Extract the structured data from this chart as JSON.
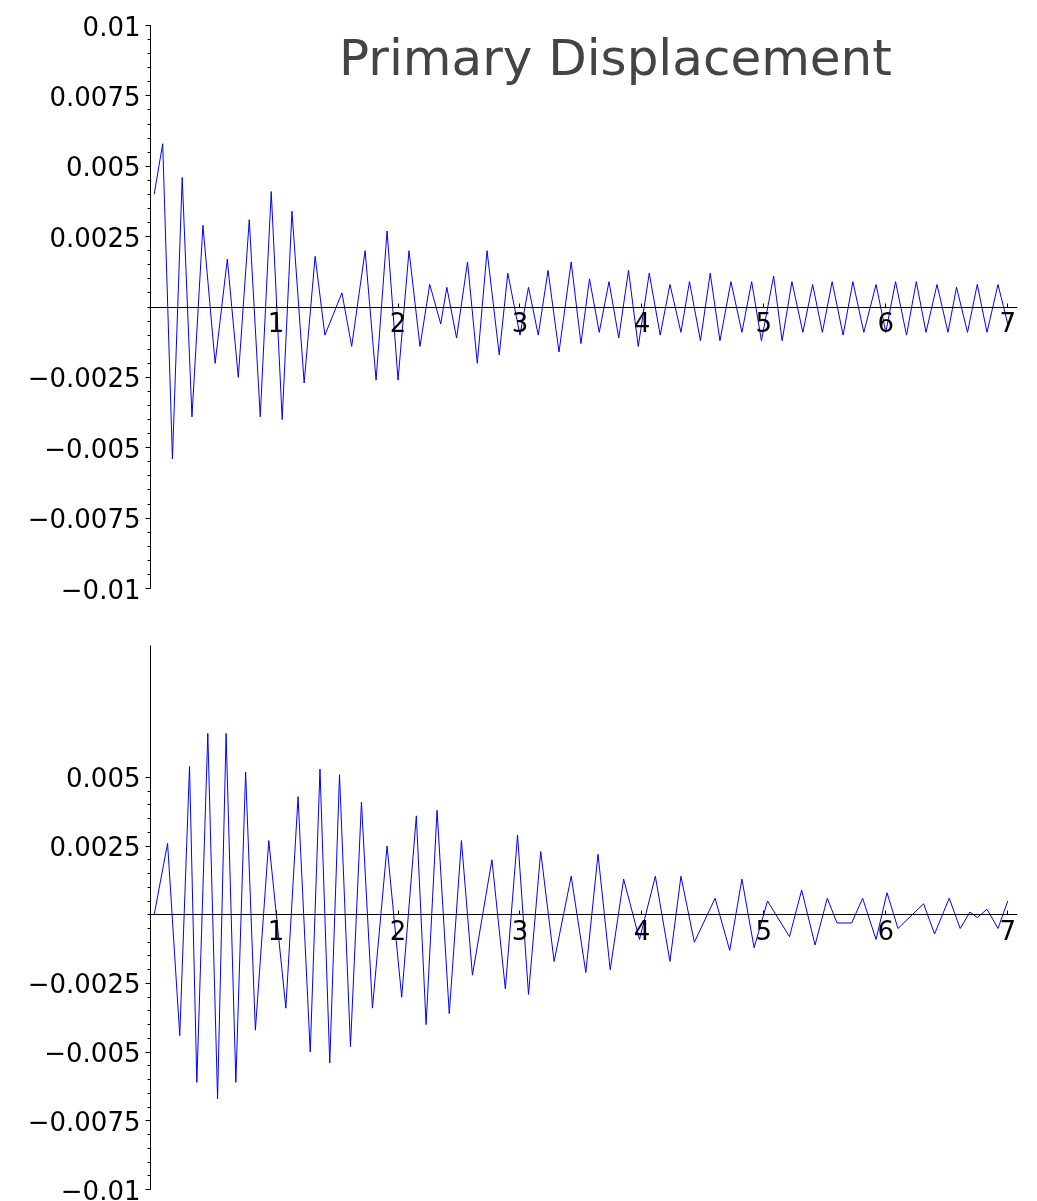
{
  "chart_data": [
    {
      "type": "line",
      "title": "Primary Displacement",
      "xlim": [
        -0.03,
        7.08
      ],
      "ylim": [
        -0.01,
        0.01
      ],
      "xticks": [
        1,
        2,
        3,
        4,
        5,
        6,
        7
      ],
      "yticks": [
        -0.01,
        -0.0075,
        -0.005,
        -0.0025,
        0.0025,
        0.005,
        0.0075,
        0.01
      ],
      "grid": false,
      "marker": "none",
      "line_style": "solid",
      "series": [
        {
          "color": "#0000ff",
          "x": [
            0,
            0.07,
            0.15,
            0.23,
            0.31,
            0.4,
            0.5,
            0.6,
            0.69,
            0.78,
            0.87,
            0.96,
            1.05,
            1.13,
            1.23,
            1.32,
            1.4,
            1.54,
            1.62,
            1.73,
            1.82,
            1.91,
            2.0,
            2.09,
            2.18,
            2.26,
            2.35,
            2.4,
            2.48,
            2.57,
            2.65,
            2.73,
            2.83,
            2.9,
            3.0,
            3.07,
            3.15,
            3.23,
            3.32,
            3.42,
            3.5,
            3.57,
            3.65,
            3.73,
            3.81,
            3.89,
            3.97,
            4.06,
            4.15,
            4.23,
            4.32,
            4.39,
            4.48,
            4.56,
            4.64,
            4.73,
            4.82,
            4.9,
            4.98,
            5.08,
            5.15,
            5.23,
            5.32,
            5.4,
            5.48,
            5.56,
            5.65,
            5.73,
            5.82,
            5.92,
            6.0,
            6.08,
            6.17,
            6.25,
            6.33,
            6.42,
            6.51,
            6.58,
            6.67,
            6.75,
            6.83,
            6.92,
            7.0
          ],
          "values": [
            0.004,
            0.0058,
            -0.0054,
            0.0046,
            -0.0039,
            0.0029,
            -0.002,
            0.0017,
            -0.0025,
            0.0031,
            -0.0039,
            0.0041,
            -0.004,
            0.0034,
            -0.0027,
            0.0018,
            -0.001,
            0.0005,
            -0.0014,
            0.002,
            -0.0026,
            0.0027,
            -0.0026,
            0.002,
            -0.0014,
            0.0008,
            -0.0006,
            0.0007,
            -0.0011,
            0.0016,
            -0.002,
            0.002,
            -0.0017,
            0.0012,
            -0.001,
            0.0007,
            -0.001,
            0.0013,
            -0.0016,
            0.0016,
            -0.0013,
            0.001,
            -0.0009,
            0.0009,
            -0.0011,
            0.0013,
            -0.0014,
            0.0012,
            -0.001,
            0.0008,
            -0.0009,
            0.0009,
            -0.0012,
            0.0012,
            -0.0012,
            0.0009,
            -0.0009,
            0.0009,
            -0.0012,
            0.0011,
            -0.0012,
            0.0009,
            -0.0009,
            0.0008,
            -0.0009,
            0.0009,
            -0.001,
            0.0009,
            -0.0009,
            0.0008,
            -0.0009,
            0.0009,
            -0.001,
            0.0009,
            -0.0009,
            0.0008,
            -0.0009,
            0.0007,
            -0.0009,
            0.0008,
            -0.0009,
            0.0008,
            -0.0006
          ]
        }
      ]
    },
    {
      "type": "line",
      "xlim": [
        -0.03,
        7.08
      ],
      "ylim": [
        -0.01,
        0.0098
      ],
      "xticks": [
        1,
        2,
        3,
        4,
        5,
        6,
        7
      ],
      "yticks": [
        -0.01,
        -0.0075,
        -0.005,
        -0.0025,
        0.0025,
        0.005
      ],
      "grid": false,
      "marker": "none",
      "line_style": "solid",
      "series": [
        {
          "color": "#0000ff",
          "x": [
            0,
            0.11,
            0.21,
            0.29,
            0.35,
            0.44,
            0.52,
            0.59,
            0.67,
            0.75,
            0.83,
            0.94,
            1.08,
            1.18,
            1.28,
            1.36,
            1.44,
            1.52,
            1.61,
            1.7,
            1.79,
            1.91,
            2.03,
            2.15,
            2.23,
            2.32,
            2.42,
            2.52,
            2.61,
            2.77,
            2.88,
            2.98,
            3.07,
            3.17,
            3.28,
            3.42,
            3.54,
            3.64,
            3.74,
            3.85,
            3.98,
            4.11,
            4.23,
            4.32,
            4.43,
            4.6,
            4.72,
            4.82,
            4.92,
            5.03,
            5.21,
            5.31,
            5.42,
            5.52,
            5.6,
            5.72,
            5.81,
            5.92,
            6.01,
            6.1,
            6.31,
            6.4,
            6.52,
            6.61,
            6.69,
            6.75,
            6.83,
            6.92,
            7.0
          ],
          "values": [
            0,
            0.0026,
            -0.0044,
            0.0054,
            -0.0061,
            0.0066,
            -0.0067,
            0.0066,
            -0.0061,
            0.0052,
            -0.0042,
            0.0027,
            -0.0034,
            0.0043,
            -0.005,
            0.0053,
            -0.0054,
            0.0051,
            -0.0048,
            0.0041,
            -0.0034,
            0.0025,
            -0.003,
            0.0036,
            -0.004,
            0.0038,
            -0.0036,
            0.0027,
            -0.0022,
            0.002,
            -0.0027,
            0.0029,
            -0.0029,
            0.0023,
            -0.0017,
            0.0014,
            -0.0021,
            0.0022,
            -0.002,
            0.0013,
            -0.0009,
            0.0014,
            -0.0017,
            0.0014,
            -0.001,
            0.0006,
            -0.0013,
            0.0013,
            -0.0012,
            0.0005,
            -0.0008,
            0.0009,
            -0.0011,
            0.0006,
            -0.0003,
            -0.0003,
            0.0006,
            -0.0009,
            0.0008,
            -0.0005,
            0.0004,
            -0.0007,
            0.0006,
            -0.0005,
            0.0001,
            -0.0001,
            0.0002,
            -0.0005,
            0.0005
          ]
        }
      ]
    }
  ]
}
